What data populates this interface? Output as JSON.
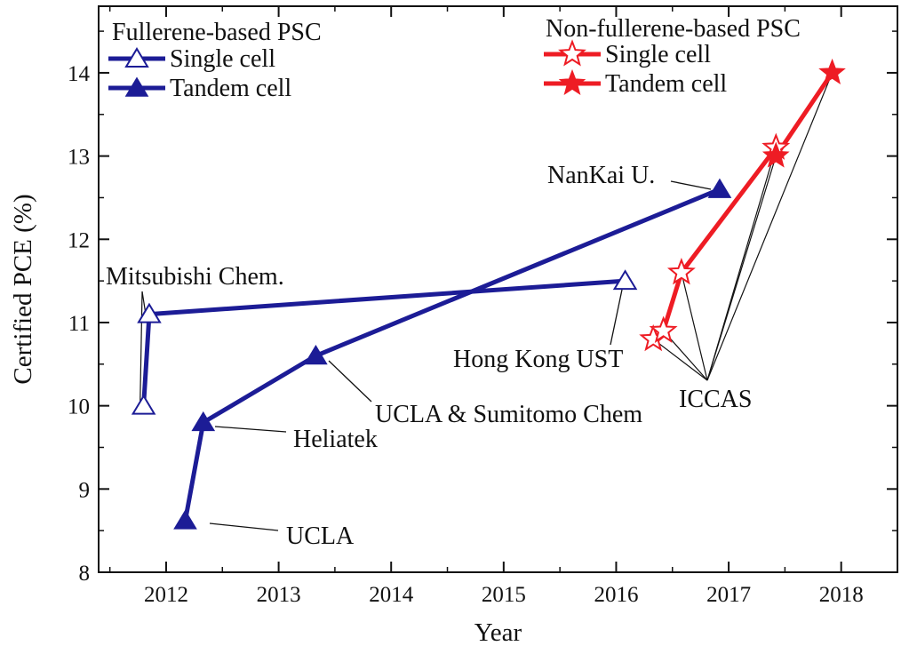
{
  "chart_data": {
    "type": "line",
    "xlabel": "Year",
    "ylabel": "Certified PCE (%)",
    "xlim": [
      2011.4,
      2018.5
    ],
    "ylim": [
      8,
      14.8
    ],
    "xticks": [
      2012,
      2013,
      2014,
      2015,
      2016,
      2017,
      2018
    ],
    "yticks": [
      8,
      9,
      10,
      11,
      12,
      13,
      14
    ],
    "grid": false,
    "legend": {
      "groups": [
        {
          "title": "Fullerene-based PSC",
          "entries": [
            {
              "series": "fullerene-single",
              "label": "Single cell"
            },
            {
              "series": "fullerene-tandem",
              "label": "Tandem cell"
            }
          ]
        },
        {
          "title": "Non-fullerene-based PSC",
          "entries": [
            {
              "series": "nonfullerene-single",
              "label": "Single cell"
            },
            {
              "series": "nonfullerene-tandem",
              "label": "Tandem cell"
            }
          ]
        }
      ]
    },
    "series": [
      {
        "id": "fullerene-single",
        "color": "#1c1c96",
        "marker": "triangle-open",
        "points": [
          {
            "x": 2011.8,
            "y": 10.0
          },
          {
            "x": 2011.85,
            "y": 11.1
          },
          {
            "x": 2016.08,
            "y": 11.5
          }
        ]
      },
      {
        "id": "fullerene-tandem",
        "color": "#1c1c96",
        "marker": "triangle-filled",
        "points": [
          {
            "x": 2012.17,
            "y": 8.62
          },
          {
            "x": 2012.33,
            "y": 9.8
          },
          {
            "x": 2013.33,
            "y": 10.6
          },
          {
            "x": 2016.92,
            "y": 12.6
          }
        ]
      },
      {
        "id": "nonfullerene-single",
        "color": "#ee1c24",
        "marker": "star-open",
        "points": [
          {
            "x": 2016.33,
            "y": 10.8
          },
          {
            "x": 2016.42,
            "y": 10.9
          },
          {
            "x": 2016.58,
            "y": 11.6
          },
          {
            "x": 2017.42,
            "y": 13.1
          }
        ]
      },
      {
        "id": "nonfullerene-tandem",
        "color": "#ee1c24",
        "marker": "star-filled",
        "points": [
          {
            "x": 2017.42,
            "y": 13.0
          },
          {
            "x": 2017.92,
            "y": 14.0
          }
        ]
      }
    ],
    "annotations": [
      {
        "id": "mitsubishi",
        "text": "Mitsubishi Chem.",
        "targets": [
          [
            2011.8,
            10.0
          ],
          [
            2011.85,
            11.1
          ]
        ]
      },
      {
        "id": "nankai",
        "text": "NanKai U.",
        "targets": [
          [
            2016.92,
            12.6
          ]
        ]
      },
      {
        "id": "hkust",
        "text": "Hong Kong UST",
        "targets": [
          [
            2016.08,
            11.5
          ]
        ]
      },
      {
        "id": "ucla-sumitomo",
        "text": "UCLA & Sumitomo Chem",
        "targets": [
          [
            2013.33,
            10.6
          ]
        ]
      },
      {
        "id": "heliatek",
        "text": "Heliatek",
        "targets": [
          [
            2012.33,
            9.8
          ]
        ]
      },
      {
        "id": "ucla",
        "text": "UCLA",
        "targets": [
          [
            2012.17,
            8.62
          ]
        ]
      },
      {
        "id": "iccas",
        "text": "ICCAS",
        "targets": [
          [
            2016.33,
            10.8
          ],
          [
            2016.42,
            10.9
          ],
          [
            2016.58,
            11.6
          ],
          [
            2017.42,
            13.1
          ],
          [
            2017.42,
            13.0
          ],
          [
            2017.92,
            14.0
          ]
        ]
      }
    ]
  }
}
